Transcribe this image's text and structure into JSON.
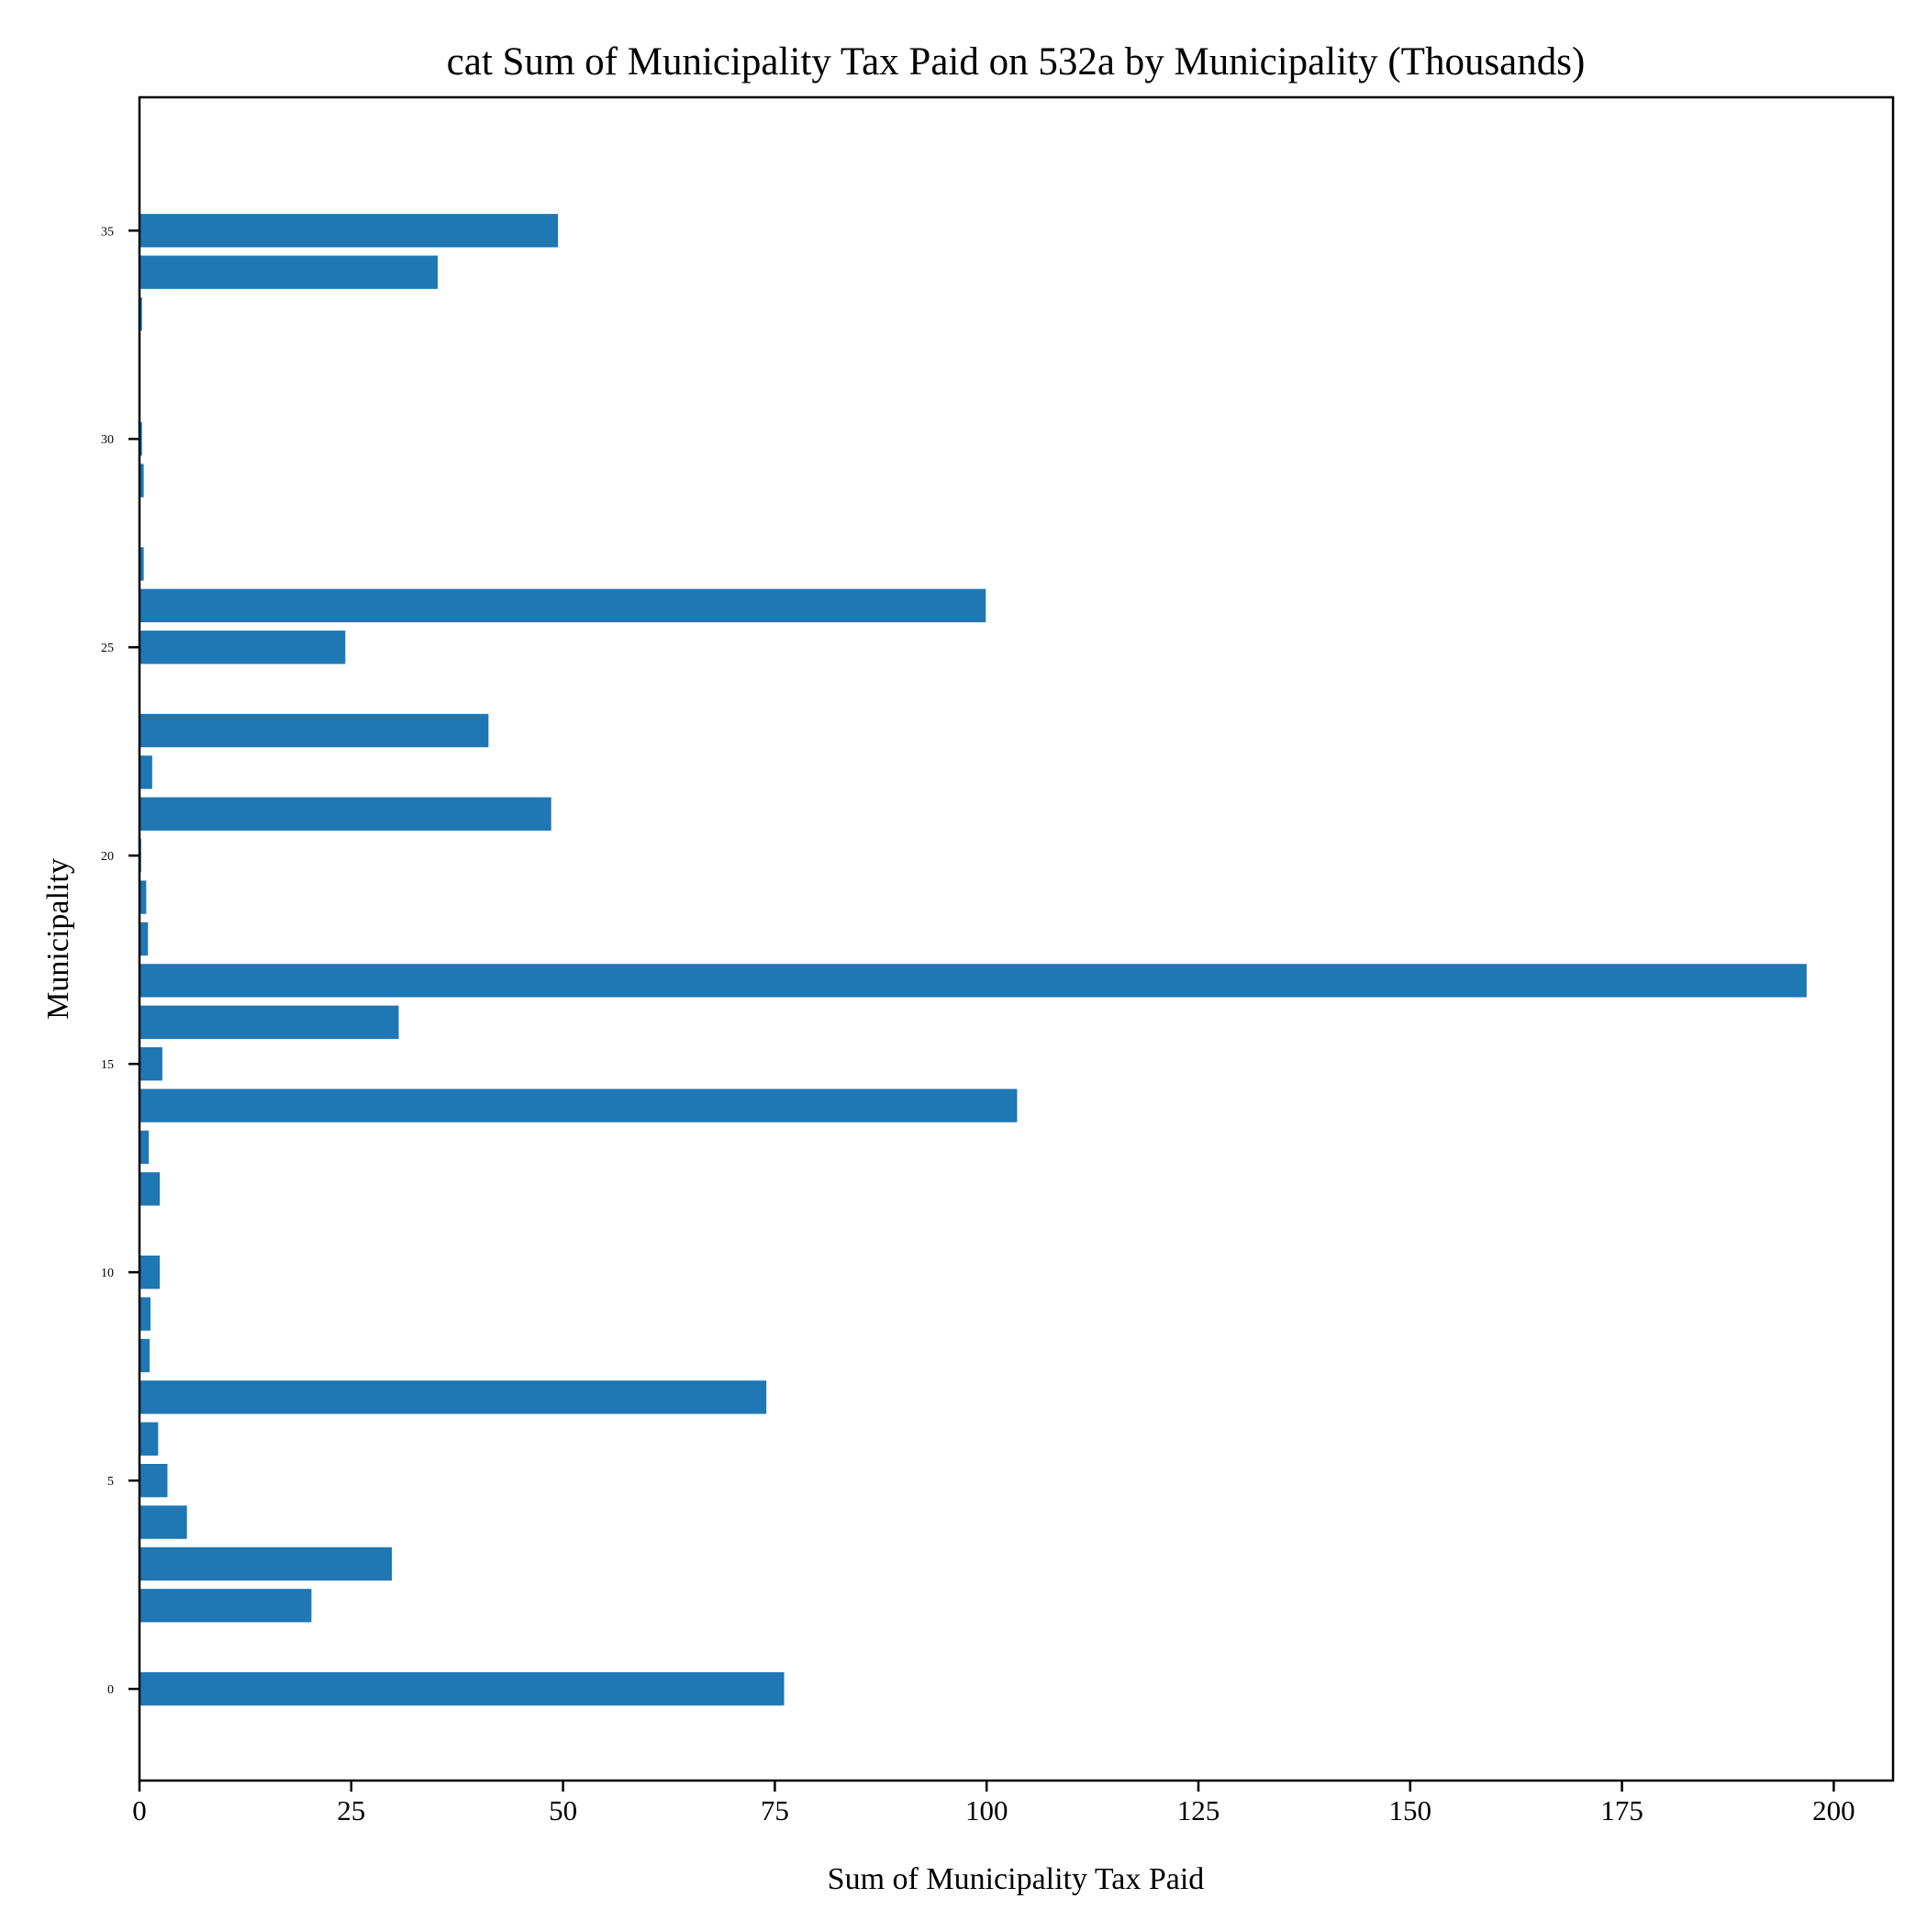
{
  "chart_data": {
    "type": "bar",
    "orientation": "horizontal",
    "title": "cat Sum of Municipality Tax Paid on 532a by Municipality (Thousands)",
    "xlabel": "Sum of Municipality Tax Paid",
    "ylabel": "Municipality",
    "xlim": [
      0,
      207
    ],
    "ylim": [
      -2.2,
      38.2
    ],
    "xticks": [
      0,
      25,
      50,
      75,
      100,
      125,
      150,
      175,
      200
    ],
    "xtick_labels": [
      "0",
      "25",
      "50",
      "75",
      "100",
      "125",
      "150",
      "175",
      "200"
    ],
    "yticks": [
      0,
      5,
      10,
      15,
      20,
      25,
      30,
      35
    ],
    "ytick_labels": [
      "0",
      "5",
      "10",
      "15",
      "20",
      "25",
      "30",
      "35"
    ],
    "grid": false,
    "legend": "none",
    "bar_color": "#1f77b4",
    "categories": [
      0,
      1,
      2,
      3,
      4,
      5,
      6,
      7,
      8,
      9,
      10,
      11,
      12,
      13,
      14,
      15,
      16,
      17,
      18,
      19,
      20,
      21,
      22,
      23,
      24,
      25,
      26,
      27,
      28,
      29,
      30,
      31,
      32,
      33,
      34,
      35,
      36
    ],
    "values": [
      76.1,
      0,
      20.3,
      29.8,
      5.6,
      3.3,
      2.2,
      74.0,
      1.2,
      1.3,
      2.4,
      0,
      2.4,
      1.1,
      103.6,
      2.7,
      30.6,
      196.8,
      1.0,
      0.8,
      0.2,
      48.6,
      1.5,
      41.2,
      0,
      24.3,
      99.9,
      0.5,
      0.1,
      0.5,
      0.3,
      0,
      0.1,
      0.3,
      35.2,
      49.4,
      0
    ]
  }
}
